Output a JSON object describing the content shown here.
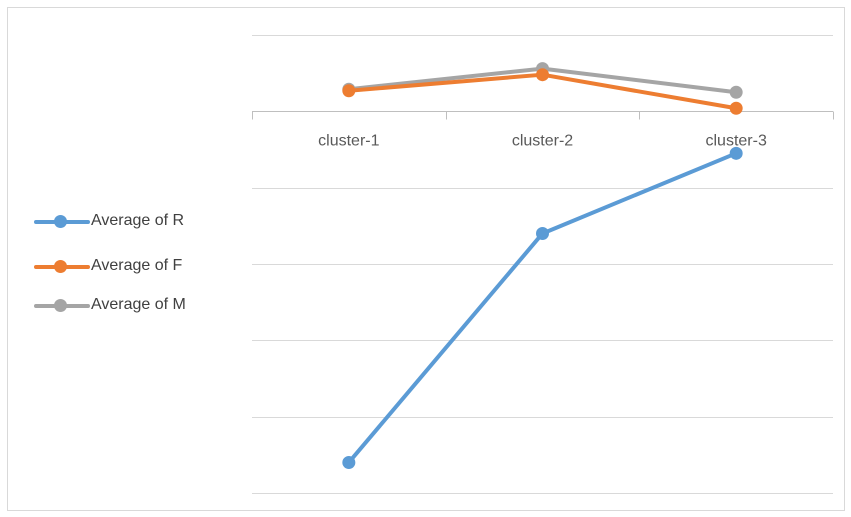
{
  "chart_data": {
    "type": "line",
    "categories": [
      "cluster-1",
      "cluster-2",
      "cluster-3"
    ],
    "series": [
      {
        "name": "Average of R",
        "color": "#5b9bd5",
        "values": [
          -4.6,
          -1.6,
          -0.55
        ]
      },
      {
        "name": "Average of F",
        "color": "#ed7d31",
        "values": [
          0.27,
          0.48,
          0.04
        ]
      },
      {
        "name": "Average of M",
        "color": "#a5a5a5",
        "values": [
          0.29,
          0.56,
          0.25
        ]
      }
    ],
    "ylim": [
      -5,
      1
    ],
    "y_gridlines": [
      1,
      0,
      -1,
      -2,
      -3,
      -4,
      -5
    ],
    "x_axis_at": 0,
    "grid": true,
    "legend_position": "left"
  }
}
